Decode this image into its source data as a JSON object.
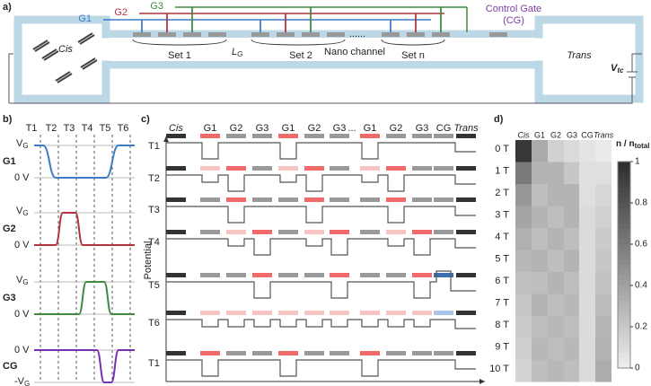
{
  "panel_a": {
    "label": "a)",
    "gates": [
      "G1",
      "G2",
      "G3"
    ],
    "cg_line1": "Control Gate",
    "cg_line2": "(CG)",
    "cis": "Cis",
    "trans": "Trans",
    "sets": [
      "Set 1",
      "Set 2",
      "Set n"
    ],
    "nano": "Nano channel",
    "dots": "......",
    "lg": "L",
    "lg_sub": "G",
    "vtc": "V",
    "vtc_sub": "tc"
  },
  "panel_b": {
    "label": "b)",
    "times": [
      "T1",
      "T2",
      "T3",
      "T4",
      "T5",
      "T6"
    ],
    "plots": [
      {
        "name": "G1",
        "top": "V",
        "top_sub": "G",
        "bottom": "0 V"
      },
      {
        "name": "G2",
        "top": "V",
        "top_sub": "G",
        "bottom": "0 V"
      },
      {
        "name": "G3",
        "top": "V",
        "top_sub": "G",
        "bottom": "0 V"
      },
      {
        "name": "CG",
        "top": "0 V",
        "bottom": "-V",
        "bottom_sub": "G"
      }
    ]
  },
  "panel_c": {
    "label": "c)",
    "columns": [
      "Cis",
      "G1",
      "G2",
      "G3",
      "G1",
      "G2",
      "G3",
      "G1",
      "G2",
      "G3",
      "CG",
      "Trans"
    ],
    "dots": "...",
    "rows": [
      "T1",
      "T2",
      "T3",
      "T4",
      "T5",
      "T6",
      "T1"
    ],
    "ylabel": "Potential"
  },
  "panel_d": {
    "label": "d)",
    "columns": [
      "Cis",
      "G1",
      "G2",
      "G3",
      "CG",
      "Trans"
    ],
    "rows": [
      "0 T",
      "1 T",
      "2 T",
      "3 T",
      "4 T",
      "5 T",
      "6 T",
      "7 T",
      "8 T",
      "9 T",
      "10 T"
    ],
    "colorbar_title": "n / n",
    "colorbar_sub": "total",
    "colorbar_ticks": [
      0,
      0.2,
      0.4,
      0.6,
      0.8,
      1
    ],
    "values": [
      [
        0.95,
        0.35,
        0.15,
        0.1,
        0.05,
        0.02
      ],
      [
        0.6,
        0.3,
        0.3,
        0.2,
        0.08,
        0.08
      ],
      [
        0.45,
        0.25,
        0.3,
        0.3,
        0.08,
        0.12
      ],
      [
        0.38,
        0.3,
        0.25,
        0.3,
        0.1,
        0.15
      ],
      [
        0.32,
        0.25,
        0.3,
        0.25,
        0.1,
        0.18
      ],
      [
        0.28,
        0.3,
        0.25,
        0.3,
        0.1,
        0.2
      ],
      [
        0.24,
        0.25,
        0.3,
        0.25,
        0.1,
        0.23
      ],
      [
        0.2,
        0.3,
        0.25,
        0.28,
        0.1,
        0.26
      ],
      [
        0.18,
        0.25,
        0.28,
        0.25,
        0.1,
        0.29
      ],
      [
        0.16,
        0.28,
        0.25,
        0.28,
        0.1,
        0.31
      ],
      [
        0.14,
        0.25,
        0.28,
        0.25,
        0.1,
        0.34
      ]
    ]
  }
}
